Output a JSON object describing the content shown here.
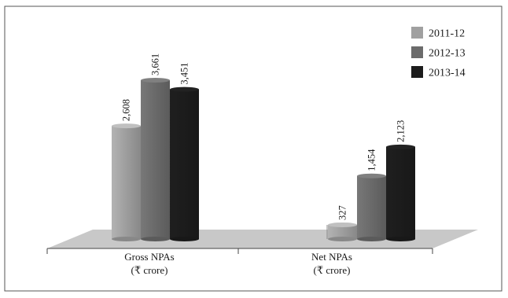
{
  "chart_data": {
    "type": "bar",
    "categories": [
      "Gross NPAs\n(₹ crore)",
      "Net NPAs\n(₹ crore)"
    ],
    "series": [
      {
        "name": "2011-12",
        "values": [
          2608,
          327
        ],
        "labels": [
          "2,608",
          "327"
        ],
        "color": "#a0a0a0"
      },
      {
        "name": "2012-13",
        "values": [
          3661,
          1454
        ],
        "labels": [
          "3,661",
          "1,454"
        ],
        "color": "#6b6b6b"
      },
      {
        "name": "2013-14",
        "values": [
          3451,
          2123
        ],
        "labels": [
          "3,451",
          "2,123"
        ],
        "color": "#1c1c1c"
      }
    ],
    "ylim": [
      0,
      4000
    ],
    "legend_position": "top-right",
    "grid": false
  }
}
